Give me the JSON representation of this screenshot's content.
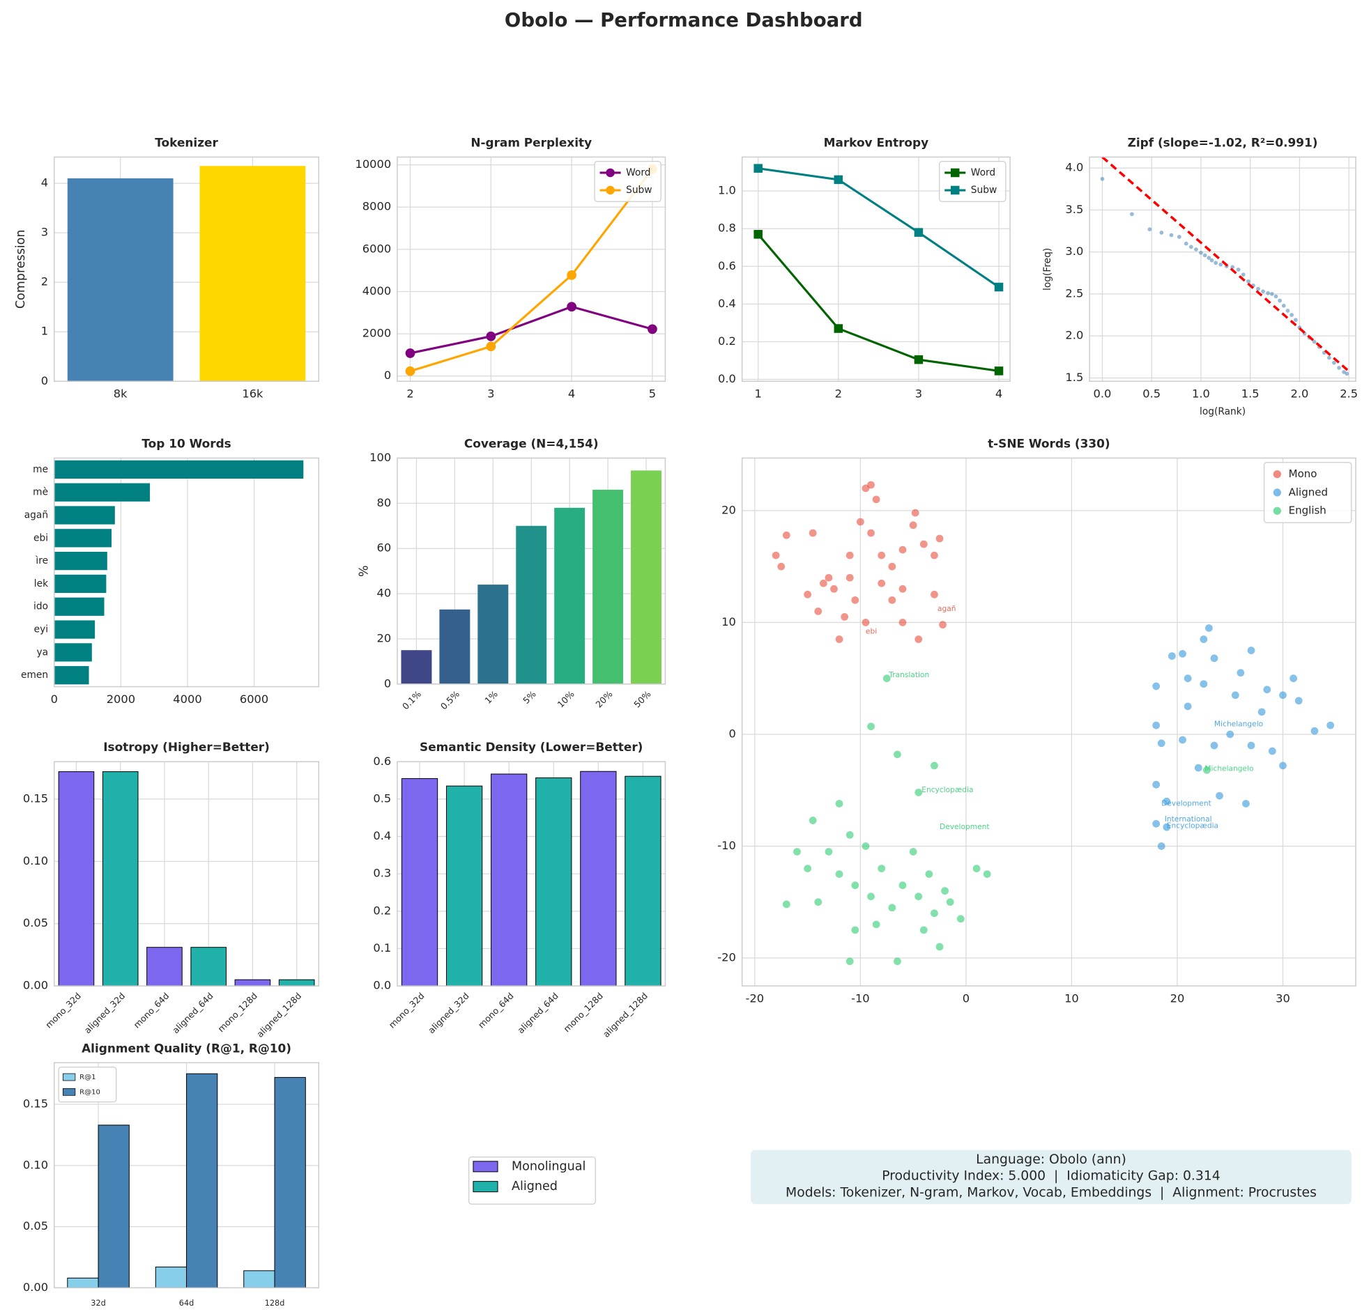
{
  "title": "Obolo — Performance Dashboard",
  "chart_data": [
    {
      "type": "bar",
      "title": "Tokenizer",
      "ylabel": "Compression",
      "categories": [
        "8k",
        "16k"
      ],
      "values": [
        4.1,
        4.35
      ],
      "colors": [
        "#4682b4",
        "#ffd700"
      ],
      "ylim": [
        0,
        4.53
      ],
      "yticks": [
        0,
        1,
        2,
        3,
        4
      ],
      "grid": true
    },
    {
      "type": "line",
      "title": "N-gram Perplexity",
      "x": [
        2,
        3,
        4,
        5
      ],
      "xlim": [
        1.84,
        5.16
      ],
      "xticks": [
        2,
        3,
        4,
        5
      ],
      "ylim": [
        -250,
        10370
      ],
      "yticks": [
        0,
        2000,
        4000,
        6000,
        8000,
        10000
      ],
      "grid": true,
      "legend": "upper right",
      "series": [
        {
          "name": "Word",
          "color": "#800080",
          "marker": "o",
          "values": [
            1080,
            1880,
            3280,
            2220
          ]
        },
        {
          "name": "Subw",
          "color": "#ffa500",
          "marker": "o",
          "values": [
            230,
            1400,
            4780,
            9800
          ]
        }
      ]
    },
    {
      "type": "line",
      "title": "Markov Entropy",
      "x": [
        1,
        2,
        3,
        4
      ],
      "xlim": [
        0.8,
        4.14
      ],
      "xticks": [
        1,
        2,
        3,
        4
      ],
      "ylim": [
        -0.01,
        1.18
      ],
      "yticks": [
        {
          "value": 0,
          "label": "0.0"
        },
        {
          "value": 0.2,
          "label": "0.2"
        },
        {
          "value": 0.4,
          "label": "0.4"
        },
        {
          "value": 0.6,
          "label": "0.6"
        },
        {
          "value": 0.8,
          "label": "0.8"
        },
        {
          "value": 1,
          "label": "1.0"
        }
      ],
      "grid": true,
      "legend": "upper right",
      "series": [
        {
          "name": "Word",
          "color": "#006400",
          "marker": "s",
          "values": [
            0.77,
            0.27,
            0.105,
            0.045
          ]
        },
        {
          "name": "Subw",
          "color": "#008080",
          "marker": "s",
          "values": [
            1.12,
            1.06,
            0.78,
            0.49
          ]
        }
      ]
    },
    {
      "type": "scatter",
      "title": "Zipf (slope=-1.02, R²=0.991)",
      "xlabel": "log(Rank)",
      "ylabel": "log(Freq)",
      "xlim": [
        -0.13,
        2.57
      ],
      "ylim": [
        1.46,
        4.13
      ],
      "grid": true,
      "xticks": [
        {
          "value": 0,
          "label": "0.0"
        },
        {
          "value": 0.5,
          "label": "0.5"
        },
        {
          "value": 1,
          "label": "1.0"
        },
        {
          "value": 1.5,
          "label": "1.5"
        },
        {
          "value": 2,
          "label": "2.0"
        },
        {
          "value": 2.5,
          "label": "2.5"
        }
      ],
      "yticks": [
        {
          "value": 1.5,
          "label": "1.5"
        },
        {
          "value": 2,
          "label": "2.0"
        },
        {
          "value": 2.5,
          "label": "2.5"
        },
        {
          "value": 3,
          "label": "3.0"
        },
        {
          "value": 3.5,
          "label": "3.5"
        },
        {
          "value": 4,
          "label": "4.0"
        }
      ],
      "series": [
        {
          "color": "#4682b4",
          "x": [
            0,
            0.3,
            0.48,
            0.6,
            0.7,
            0.78,
            0.85,
            0.9,
            0.95,
            1.0,
            1.04,
            1.08,
            1.11,
            1.15,
            1.2,
            1.26,
            1.32,
            1.38,
            1.43,
            1.48,
            1.53,
            1.58,
            1.63,
            1.68,
            1.72,
            1.76,
            1.8,
            1.84,
            1.88,
            1.92,
            1.96,
            2.0,
            2.05,
            2.1,
            2.15,
            2.2,
            2.25,
            2.3,
            2.35,
            2.4,
            2.45,
            2.48
          ],
          "y": [
            3.87,
            3.45,
            3.27,
            3.23,
            3.2,
            3.18,
            3.1,
            3.06,
            3.03,
            2.99,
            2.96,
            2.93,
            2.9,
            2.87,
            2.85,
            2.83,
            2.82,
            2.79,
            2.73,
            2.65,
            2.6,
            2.56,
            2.53,
            2.51,
            2.5,
            2.47,
            2.42,
            2.36,
            2.3,
            2.25,
            2.19,
            2.1,
            2.03,
            1.98,
            1.93,
            1.87,
            1.8,
            1.74,
            1.68,
            1.62,
            1.57,
            1.55
          ]
        }
      ],
      "fit": {
        "color": "#ff0000",
        "x": [
          0,
          2.5
        ],
        "y": [
          4.13,
          1.58
        ]
      }
    },
    {
      "type": "barh",
      "title": "Top 10 Words",
      "categories": [
        "me",
        "mè",
        "agañ",
        "ebi",
        "ìre",
        "lek",
        "ido",
        "eyi",
        "ya",
        "emen"
      ],
      "values": [
        7480,
        2870,
        1820,
        1720,
        1590,
        1560,
        1500,
        1220,
        1130,
        1040
      ],
      "color": "#008080",
      "xlim": [
        0,
        7940
      ],
      "xticks": [
        0,
        2000,
        4000,
        6000
      ],
      "grid": true
    },
    {
      "type": "bar",
      "title": "Coverage (N=4,154)",
      "ylabel": "%",
      "categories": [
        "0.1%",
        "0.5%",
        "1%",
        "5%",
        "10%",
        "20%",
        "50%"
      ],
      "values": [
        15,
        33,
        44,
        70,
        78,
        86,
        94.5
      ],
      "colors": [
        "#3f4788",
        "#355f8d",
        "#2c718e",
        "#21918c",
        "#27ad81",
        "#44bf70",
        "#7ad151"
      ],
      "ylim": [
        0,
        100
      ],
      "yticks": [
        0,
        20,
        40,
        60,
        80,
        100
      ],
      "grid": true,
      "xtick_rotation": 45
    },
    {
      "type": "scatter",
      "title": "t-SNE Words (330)",
      "xlim": [
        -21.2,
        36.9
      ],
      "ylim": [
        -22.5,
        24.7
      ],
      "xticks": [
        -20,
        -10,
        0,
        10,
        20,
        30
      ],
      "yticks": [
        -20,
        -10,
        0,
        10,
        20
      ],
      "grid": true,
      "legend": "upper right",
      "series": [
        {
          "name": "Mono",
          "color": "#e74c3c",
          "x": [
            -18,
            -17.5,
            -17,
            -14.5,
            -15,
            -13,
            -14,
            -12,
            -11,
            -10,
            -9.5,
            -9,
            -8.5,
            -9,
            -8,
            -7,
            -6,
            -5,
            -4.8,
            -4,
            -3,
            -2.5,
            -3,
            -2.2,
            -4.5,
            -6,
            -7,
            -8,
            -9.5,
            -10.5,
            -11.5,
            -12.5,
            -13.5,
            -11,
            -6
          ],
          "y": [
            16,
            15,
            17.8,
            18,
            12.5,
            14,
            11,
            8.5,
            16,
            19,
            22,
            22.3,
            21,
            18,
            16,
            15,
            16.5,
            18.7,
            19.8,
            17,
            16,
            17.5,
            12.5,
            9.8,
            8.5,
            10,
            12,
            13.5,
            10,
            12,
            10.5,
            13,
            13.5,
            14,
            13
          ]
        },
        {
          "name": "Aligned",
          "color": "#3498db",
          "x": [
            18,
            18.5,
            18,
            19,
            18.5,
            18,
            18,
            19.5,
            20.5,
            21,
            22.5,
            23,
            23.5,
            22.5,
            21,
            20.5,
            22,
            23.5,
            24,
            25,
            25.5,
            26,
            27,
            27,
            28.5,
            28,
            29,
            30,
            30,
            31,
            31.5,
            33,
            34.5,
            26.5,
            19
          ],
          "y": [
            -8,
            -10,
            -4.5,
            -6,
            -0.8,
            0.8,
            4.3,
            7,
            7.2,
            5,
            8.5,
            9.5,
            6.8,
            4.5,
            2.5,
            -0.5,
            -3,
            -1,
            -5.5,
            0,
            3.5,
            5.5,
            7.5,
            -1,
            4,
            2,
            -1.5,
            3.5,
            -2.8,
            5,
            3,
            0.3,
            0.8,
            -6.2,
            -8.3
          ]
        },
        {
          "name": "English",
          "color": "#2ecc71",
          "x": [
            -17,
            -16,
            -15,
            -14,
            -14.5,
            -13,
            -12,
            -12,
            -11,
            -10.5,
            -10.5,
            -11,
            -9.5,
            -9,
            -8.5,
            -8,
            -7,
            -6.5,
            -6,
            -5,
            -4.5,
            -4,
            -3.5,
            -3,
            -2.5,
            -2,
            -1.5,
            -0.5,
            1,
            2,
            -9,
            -7.5,
            -6.5,
            -3,
            22.8,
            -4.5
          ],
          "y": [
            -15.2,
            -10.5,
            -12,
            -15,
            -7.7,
            -10.5,
            -6.2,
            -12.5,
            -9,
            -13.5,
            -17.5,
            -20.3,
            -10,
            -14.5,
            -17,
            -12,
            -15.5,
            -20.3,
            -13.5,
            -10.5,
            -14.5,
            -17.5,
            -12.5,
            -16,
            -19,
            -14,
            -15,
            -16.5,
            -12,
            -12.5,
            0.7,
            5,
            -1.8,
            -2.8,
            -3.2,
            -5.2
          ]
        }
      ],
      "annotations": [
        {
          "text": "Translation",
          "x": -7.3,
          "y": 5.3,
          "series": 2
        },
        {
          "text": "Encyclopædia",
          "x": -4.2,
          "y": -5,
          "series": 2
        },
        {
          "text": "Development",
          "x": -2.5,
          "y": -8.3,
          "series": 2
        },
        {
          "text": "Michelangelo",
          "x": 22.6,
          "y": -3.1,
          "series": 2
        },
        {
          "text": "Michelangelo",
          "x": 23.5,
          "y": 0.9,
          "series": 1
        },
        {
          "text": "Development",
          "x": 18.5,
          "y": -6.2,
          "series": 1
        },
        {
          "text": "International",
          "x": 18.8,
          "y": -7.6,
          "series": 1
        },
        {
          "text": "Encyclopædia",
          "x": 19,
          "y": -8.2,
          "series": 1
        },
        {
          "text": "agañ",
          "x": -2.7,
          "y": 11.2,
          "series": 0
        },
        {
          "text": "ebi",
          "x": -9.5,
          "y": 9.2,
          "series": 0
        }
      ]
    },
    {
      "type": "bar",
      "title": "Isotropy (Higher=Better)",
      "categories": [
        "mono_32d",
        "aligned_32d",
        "mono_64d",
        "aligned_64d",
        "mono_128d",
        "aligned_128d"
      ],
      "values": [
        0.172,
        0.172,
        0.031,
        0.031,
        0.005,
        0.005
      ],
      "colors": [
        "#7b68ee",
        "#20b2aa",
        "#7b68ee",
        "#20b2aa",
        "#7b68ee",
        "#20b2aa"
      ],
      "edgecolor": "#000000",
      "ylim": [
        0,
        0.18
      ],
      "yticks": [
        {
          "value": 0,
          "label": "0.00"
        },
        {
          "value": 0.05,
          "label": "0.05"
        },
        {
          "value": 0.1,
          "label": "0.10"
        },
        {
          "value": 0.15,
          "label": "0.15"
        }
      ],
      "grid": true,
      "xtick_rotation": 45
    },
    {
      "type": "bar",
      "title": "Semantic Density (Lower=Better)",
      "categories": [
        "mono_32d",
        "aligned_32d",
        "mono_64d",
        "aligned_64d",
        "mono_128d",
        "aligned_128d"
      ],
      "values": [
        0.555,
        0.535,
        0.567,
        0.557,
        0.574,
        0.561
      ],
      "colors": [
        "#7b68ee",
        "#20b2aa",
        "#7b68ee",
        "#20b2aa",
        "#7b68ee",
        "#20b2aa"
      ],
      "edgecolor": "#000000",
      "ylim": [
        0,
        0.6
      ],
      "yticks": [
        {
          "value": 0,
          "label": "0.0"
        },
        {
          "value": 0.1,
          "label": "0.1"
        },
        {
          "value": 0.2,
          "label": "0.2"
        },
        {
          "value": 0.3,
          "label": "0.3"
        },
        {
          "value": 0.4,
          "label": "0.4"
        },
        {
          "value": 0.5,
          "label": "0.5"
        },
        {
          "value": 0.6,
          "label": "0.6"
        }
      ],
      "grid": true,
      "xtick_rotation": 45
    },
    {
      "type": "grouped_bar",
      "title": "Alignment Quality (R@1, R@10)",
      "categories": [
        "32d",
        "64d",
        "128d"
      ],
      "edgecolor": "#000000",
      "ylim": [
        0,
        0.184
      ],
      "yticks": [
        {
          "value": 0,
          "label": "0.00"
        },
        {
          "value": 0.05,
          "label": "0.05"
        },
        {
          "value": 0.1,
          "label": "0.10"
        },
        {
          "value": 0.15,
          "label": "0.15"
        }
      ],
      "grid": true,
      "legend": "upper left",
      "series": [
        {
          "name": "R@1",
          "color": "#87ceeb",
          "values": [
            0.008,
            0.017,
            0.014
          ]
        },
        {
          "name": "R@10",
          "color": "#4682b4",
          "values": [
            0.133,
            0.175,
            0.172
          ]
        }
      ]
    }
  ],
  "shared_legend": {
    "entries": [
      {
        "name": "Monolingual",
        "color": "#7b68ee"
      },
      {
        "name": "Aligned",
        "color": "#20b2aa"
      }
    ]
  },
  "info_box": {
    "lines": [
      "Language: Obolo (ann)",
      "Productivity Index: 5.000  |  Idiomaticity Gap: 0.314",
      "Models: Tokenizer, N-gram, Markov, Vocab, Embeddings  |  Alignment: Procrustes"
    ]
  }
}
